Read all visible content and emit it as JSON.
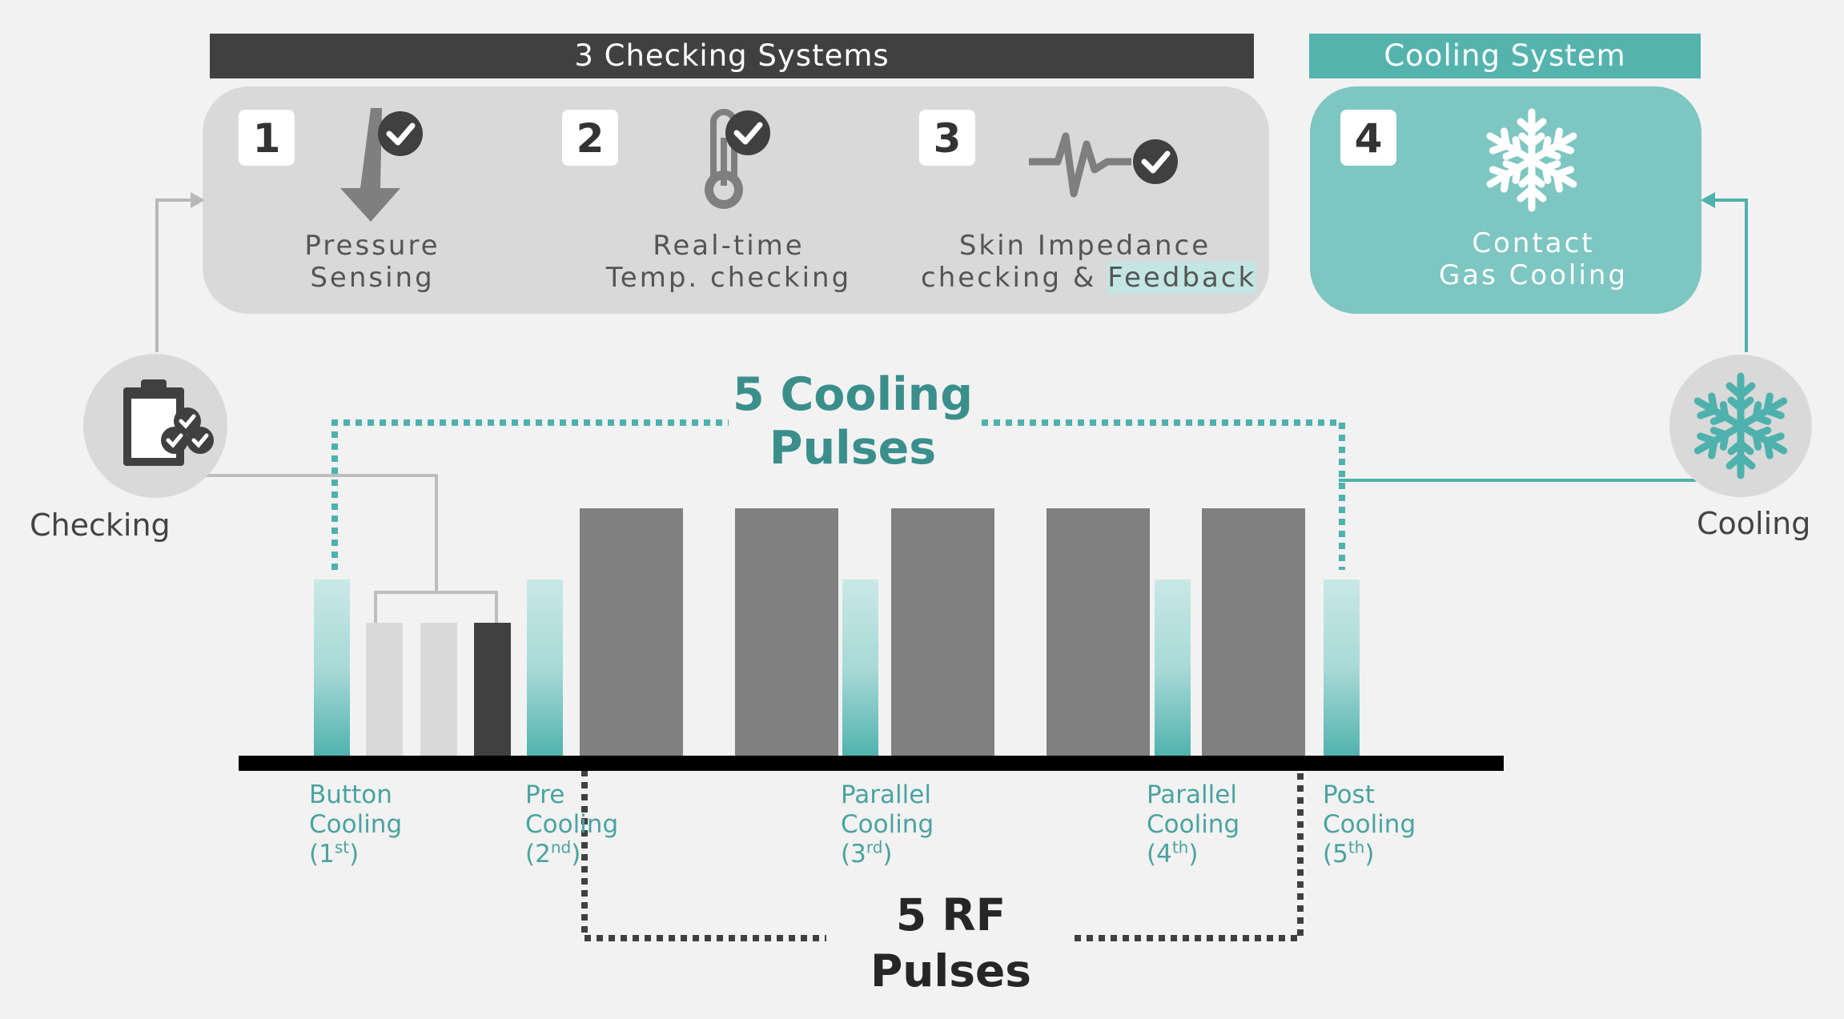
{
  "header_checking": "3 Checking Systems",
  "header_cooling": "Cooling System",
  "checks": [
    {
      "number": "1",
      "line1": "Pressure",
      "line2": "Sensing"
    },
    {
      "number": "2",
      "line1": "Real-time",
      "line2": "Temp. checking"
    },
    {
      "number": "3",
      "line1": "Skin Impedance",
      "line2a": "checking & ",
      "line2b": "Feedback"
    }
  ],
  "cooling_system": {
    "number": "4",
    "line1": "Contact",
    "line2": "Gas Cooling"
  },
  "side_labels": {
    "checking": "Checking",
    "cooling": "Cooling"
  },
  "cooling_pulses": {
    "line1": "5 Cooling",
    "line2": "Pulses"
  },
  "rf_pulses": {
    "line1": "5 RF",
    "line2": "Pulses"
  },
  "bar_labels": [
    {
      "l1": "Button",
      "l2": "Cooling",
      "open": "(1",
      "sup": "st",
      "close": ")"
    },
    {
      "l1": "Pre",
      "l2": "Cooling",
      "open": "(2",
      "sup": "nd",
      "close": ")"
    },
    {
      "l1": "Parallel",
      "l2": "Cooling",
      "open": "(3",
      "sup": "rd",
      "close": ")"
    },
    {
      "l1": "Parallel",
      "l2": "Cooling",
      "open": "(4",
      "sup": "th",
      "close": ")"
    },
    {
      "l1": "Post",
      "l2": "Cooling",
      "open": "(5",
      "sup": "th",
      "close": ")"
    }
  ],
  "colors": {
    "teal": "#4eb1ad",
    "teal_panel": "#7dc6c1",
    "dark": "#404040",
    "grey_bar": "#808080",
    "light_bar": "#d9d9d9"
  },
  "icons": [
    "pressure-arrow-icon",
    "thermometer-icon",
    "impedance-wave-icon",
    "snowflake-icon",
    "clipboard-check-icon",
    "check-badge-icon"
  ]
}
